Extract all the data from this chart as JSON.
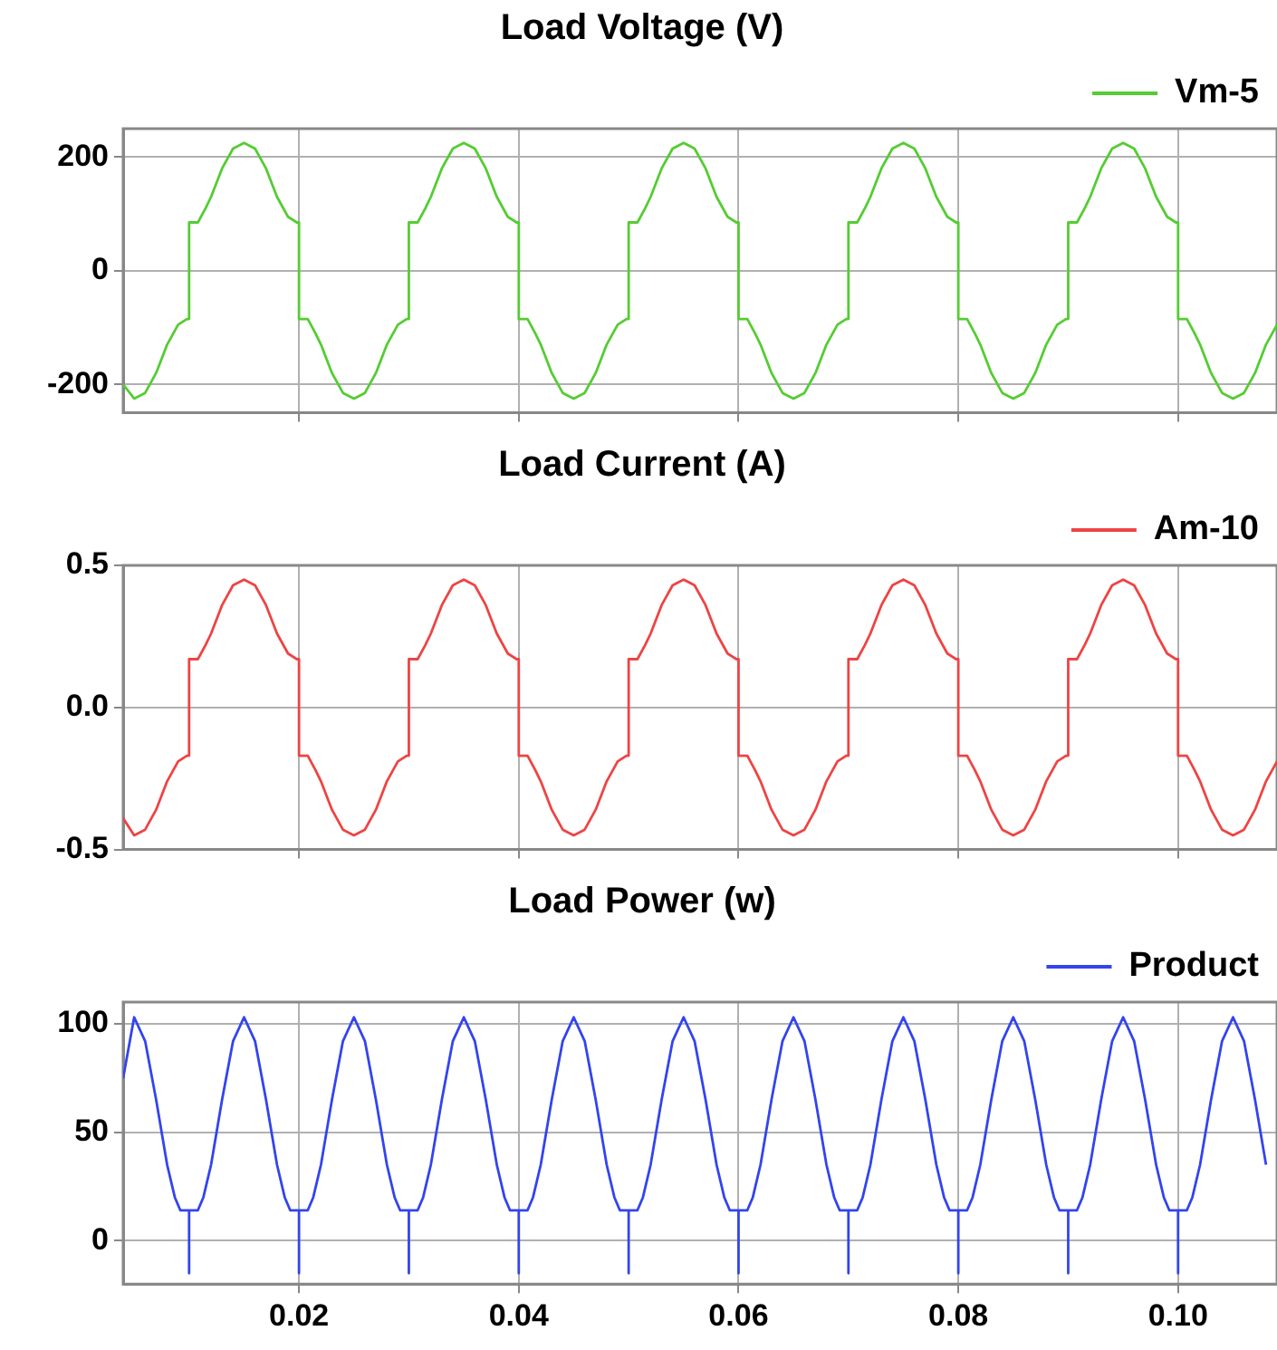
{
  "chart_data": [
    {
      "type": "line",
      "title": "Load Voltage (V)",
      "x": [
        0.004,
        0.005,
        0.006,
        0.007,
        0.008,
        0.009,
        0.0098,
        0.01,
        0.01,
        0.0108,
        0.0115,
        0.012,
        0.013,
        0.014,
        0.015,
        0.016,
        0.017,
        0.018,
        0.019,
        0.0198,
        0.02,
        0.02,
        0.0208,
        0.0215,
        0.022,
        0.023,
        0.024,
        0.025,
        0.026,
        0.027,
        0.028,
        0.029,
        0.0298,
        0.03,
        0.03,
        0.0308,
        0.0315,
        0.032,
        0.033,
        0.034,
        0.035,
        0.036,
        0.037,
        0.038,
        0.039,
        0.0398,
        0.04,
        0.04,
        0.0408,
        0.0415,
        0.042,
        0.043,
        0.044,
        0.045,
        0.046,
        0.047,
        0.048,
        0.049,
        0.0498,
        0.05,
        0.05,
        0.0508,
        0.0515,
        0.052,
        0.053,
        0.054,
        0.055,
        0.056,
        0.057,
        0.058,
        0.059,
        0.0598,
        0.06,
        0.06,
        0.0608,
        0.0615,
        0.062,
        0.063,
        0.064,
        0.065,
        0.066,
        0.067,
        0.068,
        0.069,
        0.0698,
        0.07,
        0.07,
        0.0708,
        0.0715,
        0.072,
        0.073,
        0.074,
        0.075,
        0.076,
        0.077,
        0.078,
        0.079,
        0.0798,
        0.08,
        0.08,
        0.0808,
        0.0815,
        0.082,
        0.083,
        0.084,
        0.085,
        0.086,
        0.087,
        0.088,
        0.089,
        0.0898,
        0.09,
        0.09,
        0.0908,
        0.0915,
        0.092,
        0.093,
        0.094,
        0.095,
        0.096,
        0.097,
        0.098,
        0.099,
        0.0998,
        0.1,
        0.1,
        0.1008,
        0.1015,
        0.102,
        0.103,
        0.104,
        0.105,
        0.106,
        0.107,
        0.108,
        0.109
      ],
      "series": [
        {
          "name": "Vm-5",
          "color": "#55cc33",
          "values": [
            -200,
            -225,
            -215,
            -180,
            -130,
            -95,
            -85,
            -85,
            85,
            85,
            110,
            130,
            180,
            215,
            225,
            215,
            180,
            130,
            95,
            85,
            85,
            -85,
            -85,
            -110,
            -130,
            -180,
            -215,
            -225,
            -215,
            -180,
            -130,
            -95,
            -85,
            -85,
            85,
            85,
            110,
            130,
            180,
            215,
            225,
            215,
            180,
            130,
            95,
            85,
            85,
            -85,
            -85,
            -110,
            -130,
            -180,
            -215,
            -225,
            -215,
            -180,
            -130,
            -95,
            -85,
            -85,
            85,
            85,
            110,
            130,
            180,
            215,
            225,
            215,
            180,
            130,
            95,
            85,
            85,
            -85,
            -85,
            -110,
            -130,
            -180,
            -215,
            -225,
            -215,
            -180,
            -130,
            -95,
            -85,
            -85,
            85,
            85,
            110,
            130,
            180,
            215,
            225,
            215,
            180,
            130,
            95,
            85,
            85,
            -85,
            -85,
            -110,
            -130,
            -180,
            -215,
            -225,
            -215,
            -180,
            -130,
            -95,
            -85,
            -85,
            85,
            85,
            110,
            130,
            180,
            215,
            225,
            215,
            180,
            130,
            95,
            85,
            85,
            -85,
            -85,
            -110,
            -130,
            -180,
            -215,
            -225,
            -215,
            -180,
            -130,
            -95
          ]
        }
      ],
      "xlim": [
        0.004,
        0.109
      ],
      "xticks": [
        0.02,
        0.04,
        0.06,
        0.08,
        0.1
      ],
      "ylim": [
        -250,
        250
      ],
      "yticks": [
        -200,
        0,
        200
      ],
      "grid": true,
      "legend": "top right",
      "marker": "none",
      "tick_labels": "y"
    },
    {
      "type": "line",
      "title": "Load Current (A)",
      "x": [
        0.004,
        0.005,
        0.006,
        0.007,
        0.008,
        0.009,
        0.0098,
        0.01,
        0.01,
        0.0108,
        0.0115,
        0.012,
        0.013,
        0.014,
        0.015,
        0.016,
        0.017,
        0.018,
        0.019,
        0.0198,
        0.02,
        0.02,
        0.0208,
        0.0215,
        0.022,
        0.023,
        0.024,
        0.025,
        0.026,
        0.027,
        0.028,
        0.029,
        0.0298,
        0.03,
        0.03,
        0.0308,
        0.0315,
        0.032,
        0.033,
        0.034,
        0.035,
        0.036,
        0.037,
        0.038,
        0.039,
        0.0398,
        0.04,
        0.04,
        0.0408,
        0.0415,
        0.042,
        0.043,
        0.044,
        0.045,
        0.046,
        0.047,
        0.048,
        0.049,
        0.0498,
        0.05,
        0.05,
        0.0508,
        0.0515,
        0.052,
        0.053,
        0.054,
        0.055,
        0.056,
        0.057,
        0.058,
        0.059,
        0.0598,
        0.06,
        0.06,
        0.0608,
        0.0615,
        0.062,
        0.063,
        0.064,
        0.065,
        0.066,
        0.067,
        0.068,
        0.069,
        0.0698,
        0.07,
        0.07,
        0.0708,
        0.0715,
        0.072,
        0.073,
        0.074,
        0.075,
        0.076,
        0.077,
        0.078,
        0.079,
        0.0798,
        0.08,
        0.08,
        0.0808,
        0.0815,
        0.082,
        0.083,
        0.084,
        0.085,
        0.086,
        0.087,
        0.088,
        0.089,
        0.0898,
        0.09,
        0.09,
        0.0908,
        0.0915,
        0.092,
        0.093,
        0.094,
        0.095,
        0.096,
        0.097,
        0.098,
        0.099,
        0.0998,
        0.1,
        0.1,
        0.1008,
        0.1015,
        0.102,
        0.103,
        0.104,
        0.105,
        0.106,
        0.107,
        0.108,
        0.109
      ],
      "series": [
        {
          "name": "Am-10",
          "color": "#ee4444",
          "values": [
            -0.39,
            -0.45,
            -0.43,
            -0.36,
            -0.26,
            -0.19,
            -0.17,
            -0.17,
            0.17,
            0.17,
            0.22,
            0.26,
            0.36,
            0.43,
            0.45,
            0.43,
            0.36,
            0.26,
            0.19,
            0.17,
            0.17,
            -0.17,
            -0.17,
            -0.22,
            -0.26,
            -0.36,
            -0.43,
            -0.45,
            -0.43,
            -0.36,
            -0.26,
            -0.19,
            -0.17,
            -0.17,
            0.17,
            0.17,
            0.22,
            0.26,
            0.36,
            0.43,
            0.45,
            0.43,
            0.36,
            0.26,
            0.19,
            0.17,
            0.17,
            -0.17,
            -0.17,
            -0.22,
            -0.26,
            -0.36,
            -0.43,
            -0.45,
            -0.43,
            -0.36,
            -0.26,
            -0.19,
            -0.17,
            -0.17,
            0.17,
            0.17,
            0.22,
            0.26,
            0.36,
            0.43,
            0.45,
            0.43,
            0.36,
            0.26,
            0.19,
            0.17,
            0.17,
            -0.17,
            -0.17,
            -0.22,
            -0.26,
            -0.36,
            -0.43,
            -0.45,
            -0.43,
            -0.36,
            -0.26,
            -0.19,
            -0.17,
            -0.17,
            0.17,
            0.17,
            0.22,
            0.26,
            0.36,
            0.43,
            0.45,
            0.43,
            0.36,
            0.26,
            0.19,
            0.17,
            0.17,
            -0.17,
            -0.17,
            -0.22,
            -0.26,
            -0.36,
            -0.43,
            -0.45,
            -0.43,
            -0.36,
            -0.26,
            -0.19,
            -0.17,
            -0.17,
            0.17,
            0.17,
            0.22,
            0.26,
            0.36,
            0.43,
            0.45,
            0.43,
            0.36,
            0.26,
            0.19,
            0.17,
            0.17,
            -0.17,
            -0.17,
            -0.22,
            -0.26,
            -0.36,
            -0.43,
            -0.45,
            -0.43,
            -0.36,
            -0.26,
            -0.19
          ]
        }
      ],
      "xlim": [
        0.004,
        0.109
      ],
      "xticks": [
        0.02,
        0.04,
        0.06,
        0.08,
        0.1
      ],
      "ylim": [
        -0.5,
        0.5
      ],
      "yticks": [
        -0.5,
        {
          "value": 0,
          "label": "0.0"
        },
        0.5
      ],
      "grid": true,
      "legend": "top right",
      "marker": "none",
      "tick_labels": "y"
    },
    {
      "type": "line",
      "title": "Load Power (w)",
      "x": [
        0.004,
        0.005,
        0.006,
        0.007,
        0.008,
        0.0087,
        0.0092,
        0.01,
        0.01,
        0.01,
        0.0108,
        0.0113,
        0.012,
        0.013,
        0.014,
        0.015,
        0.016,
        0.017,
        0.018,
        0.0187,
        0.0192,
        0.02,
        0.02,
        0.02,
        0.0208,
        0.0213,
        0.022,
        0.023,
        0.024,
        0.025,
        0.026,
        0.027,
        0.028,
        0.0287,
        0.0292,
        0.03,
        0.03,
        0.03,
        0.0308,
        0.0313,
        0.032,
        0.033,
        0.034,
        0.035,
        0.036,
        0.037,
        0.038,
        0.0387,
        0.0392,
        0.04,
        0.04,
        0.04,
        0.0408,
        0.0413,
        0.042,
        0.043,
        0.044,
        0.045,
        0.046,
        0.047,
        0.048,
        0.0487,
        0.0492,
        0.05,
        0.05,
        0.05,
        0.0508,
        0.0513,
        0.052,
        0.053,
        0.054,
        0.055,
        0.056,
        0.057,
        0.058,
        0.0587,
        0.0592,
        0.06,
        0.06,
        0.06,
        0.0608,
        0.0613,
        0.062,
        0.063,
        0.064,
        0.065,
        0.066,
        0.067,
        0.068,
        0.0687,
        0.0692,
        0.07,
        0.07,
        0.07,
        0.0708,
        0.0713,
        0.072,
        0.073,
        0.074,
        0.075,
        0.076,
        0.077,
        0.078,
        0.0787,
        0.0792,
        0.08,
        0.08,
        0.08,
        0.0808,
        0.0813,
        0.082,
        0.083,
        0.084,
        0.085,
        0.086,
        0.087,
        0.088,
        0.0887,
        0.0892,
        0.09,
        0.09,
        0.09,
        0.0908,
        0.0913,
        0.092,
        0.093,
        0.094,
        0.095,
        0.096,
        0.097,
        0.098,
        0.0987,
        0.0992,
        0.1,
        0.1,
        0.1,
        0.1008,
        0.1013,
        0.102,
        0.103,
        0.104,
        0.105,
        0.106,
        0.107,
        0.108
      ],
      "series": [
        {
          "name": "Product",
          "color": "#3344ee",
          "values": [
            75,
            103,
            92,
            65,
            35,
            20,
            14,
            14,
            -15,
            14,
            14,
            20,
            35,
            65,
            92,
            103,
            92,
            65,
            35,
            20,
            14,
            14,
            -15,
            14,
            14,
            20,
            35,
            65,
            92,
            103,
            92,
            65,
            35,
            20,
            14,
            14,
            -15,
            14,
            14,
            20,
            35,
            65,
            92,
            103,
            92,
            65,
            35,
            20,
            14,
            14,
            -15,
            14,
            14,
            20,
            35,
            65,
            92,
            103,
            92,
            65,
            35,
            20,
            14,
            14,
            -15,
            14,
            14,
            20,
            35,
            65,
            92,
            103,
            92,
            65,
            35,
            20,
            14,
            14,
            -15,
            14,
            14,
            20,
            35,
            65,
            92,
            103,
            92,
            65,
            35,
            20,
            14,
            14,
            -15,
            14,
            14,
            20,
            35,
            65,
            92,
            103,
            92,
            65,
            35,
            20,
            14,
            14,
            -15,
            14,
            14,
            20,
            35,
            65,
            92,
            103,
            92,
            65,
            35,
            20,
            14,
            14,
            -15,
            14,
            14,
            20,
            35,
            65,
            92,
            103,
            92,
            65,
            35,
            20,
            14,
            14,
            -15,
            14,
            14,
            20,
            35,
            65,
            92,
            103,
            92,
            65,
            35
          ]
        }
      ],
      "xlim": [
        0.004,
        0.109
      ],
      "xticks": [
        0.02,
        0.04,
        0.06,
        0.08,
        {
          "value": 0.1,
          "label": "0.10"
        }
      ],
      "ylim": [
        -20,
        110
      ],
      "yticks": [
        0,
        50,
        100
      ],
      "grid": true,
      "legend": "top right",
      "marker": "none"
    }
  ]
}
